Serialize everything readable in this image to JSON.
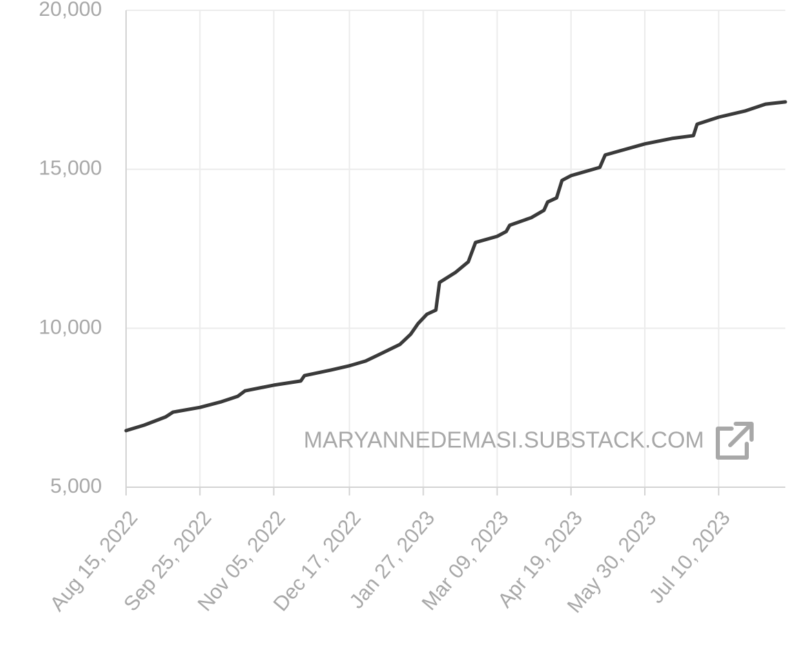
{
  "chart_data": {
    "type": "line",
    "x": [
      "2022-08-15",
      "2022-08-25",
      "2022-09-06",
      "2022-09-10",
      "2022-09-25",
      "2022-10-07",
      "2022-10-16",
      "2022-10-20",
      "2022-11-05",
      "2022-11-20",
      "2022-11-22",
      "2022-12-07",
      "2022-12-17",
      "2022-12-26",
      "2023-01-02",
      "2023-01-14",
      "2023-01-20",
      "2023-01-24",
      "2023-01-29",
      "2023-02-03",
      "2023-02-05",
      "2023-02-14",
      "2023-02-21",
      "2023-02-25",
      "2023-03-09",
      "2023-03-14",
      "2023-03-16",
      "2023-03-28",
      "2023-04-04",
      "2023-04-06",
      "2023-04-11",
      "2023-04-14",
      "2023-04-19",
      "2023-05-05",
      "2023-05-08",
      "2023-05-30",
      "2023-06-14",
      "2023-06-26",
      "2023-06-28",
      "2023-07-10",
      "2023-07-25",
      "2023-08-05",
      "2023-08-16"
    ],
    "values": [
      6780,
      6950,
      7210,
      7360,
      7510,
      7690,
      7860,
      8030,
      8210,
      8340,
      8510,
      8690,
      8820,
      8970,
      9160,
      9490,
      9810,
      10140,
      10440,
      10570,
      11440,
      11760,
      12090,
      12700,
      12890,
      13040,
      13240,
      13480,
      13710,
      13970,
      14100,
      14650,
      14800,
      15060,
      15450,
      15800,
      15970,
      16060,
      16420,
      16640,
      16840,
      17050,
      17120
    ],
    "color": "#3a3a3a",
    "xlim": [
      "2022-08-15",
      "2023-08-16"
    ],
    "xticks": [
      {
        "value": "2022-08-15",
        "label": "Aug 15, 2022"
      },
      {
        "value": "2022-09-25",
        "label": "Sep 25, 2022"
      },
      {
        "value": "2022-11-05",
        "label": "Nov 05, 2022"
      },
      {
        "value": "2022-12-17",
        "label": "Dec 17, 2022"
      },
      {
        "value": "2023-01-27",
        "label": "Jan 27, 2023"
      },
      {
        "value": "2023-03-09",
        "label": "Mar 09, 2023"
      },
      {
        "value": "2023-04-19",
        "label": "Apr 19, 2023"
      },
      {
        "value": "2023-05-30",
        "label": "May 30, 2023"
      },
      {
        "value": "2023-07-10",
        "label": "Jul 10, 2023"
      }
    ],
    "ylim": [
      5000,
      20000
    ],
    "yticks": [
      {
        "value": 5000,
        "label": "5,000"
      },
      {
        "value": 10000,
        "label": "10,000"
      },
      {
        "value": 15000,
        "label": "15,000"
      },
      {
        "value": 20000,
        "label": "20,000"
      }
    ],
    "grid": true,
    "watermark": "MARYANNEDEMASI.SUBSTACK.COM"
  }
}
